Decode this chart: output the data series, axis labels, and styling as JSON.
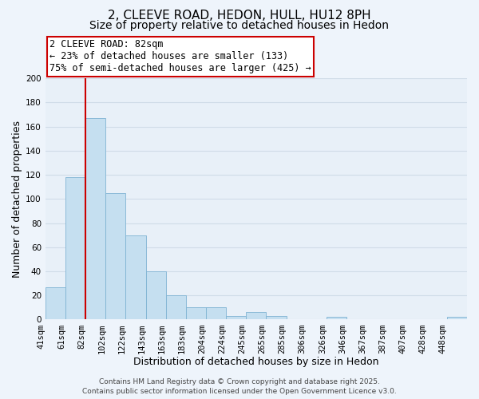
{
  "title": "2, CLEEVE ROAD, HEDON, HULL, HU12 8PH",
  "subtitle": "Size of property relative to detached houses in Hedon",
  "xlabel": "Distribution of detached houses by size in Hedon",
  "ylabel": "Number of detached properties",
  "bar_labels": [
    "41sqm",
    "61sqm",
    "82sqm",
    "102sqm",
    "122sqm",
    "143sqm",
    "163sqm",
    "183sqm",
    "204sqm",
    "224sqm",
    "245sqm",
    "265sqm",
    "285sqm",
    "306sqm",
    "326sqm",
    "346sqm",
    "367sqm",
    "387sqm",
    "407sqm",
    "428sqm",
    "448sqm"
  ],
  "bar_values": [
    27,
    118,
    167,
    105,
    70,
    40,
    20,
    10,
    10,
    3,
    6,
    3,
    0,
    0,
    2,
    0,
    0,
    0,
    0,
    0,
    2
  ],
  "bar_color": "#c5dff0",
  "bar_edge_color": "#7fb3d3",
  "highlight_index": 2,
  "highlight_line_color": "#cc0000",
  "ylim": [
    0,
    200
  ],
  "yticks": [
    0,
    20,
    40,
    60,
    80,
    100,
    120,
    140,
    160,
    180,
    200
  ],
  "annotation_title": "2 CLEEVE ROAD: 82sqm",
  "annotation_line1": "← 23% of detached houses are smaller (133)",
  "annotation_line2": "75% of semi-detached houses are larger (425) →",
  "annotation_box_color": "#ffffff",
  "annotation_border_color": "#cc0000",
  "footer_line1": "Contains HM Land Registry data © Crown copyright and database right 2025.",
  "footer_line2": "Contains public sector information licensed under the Open Government Licence v3.0.",
  "bg_color": "#eef4fb",
  "plot_bg_color": "#e8f0f8",
  "grid_color": "#d0dce8",
  "title_fontsize": 11,
  "subtitle_fontsize": 10,
  "axis_label_fontsize": 9,
  "tick_fontsize": 7.5,
  "footer_fontsize": 6.5
}
